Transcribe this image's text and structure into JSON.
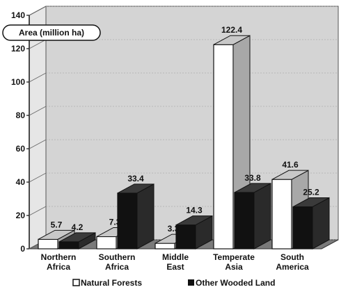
{
  "chart_data": {
    "type": "bar",
    "unit_label": "Area (million ha)",
    "categories": [
      [
        "Northern",
        "Africa"
      ],
      [
        "Southern",
        "Africa"
      ],
      [
        "Middle",
        "East"
      ],
      [
        "Temperate",
        "Asia"
      ],
      [
        "South",
        "America"
      ]
    ],
    "series": [
      {
        "name": "Natural Forests",
        "values": [
          5.7,
          7.3,
          3.3,
          122.4,
          41.6
        ],
        "color": "#ffffff"
      },
      {
        "name": "Other Wooded Land",
        "values": [
          4.2,
          33.4,
          14.3,
          33.8,
          25.2
        ],
        "color": "#111111"
      }
    ],
    "ylim": [
      0,
      140
    ],
    "yticks": [
      0,
      20,
      40,
      60,
      80,
      100,
      120,
      140
    ],
    "three_d": true,
    "legend_position": "bottom",
    "colors": {
      "wall": "#d4d4d4",
      "floor": "#7a7a7a",
      "front_white": "#ffffff",
      "side_white": "#a8a8a8",
      "top_white": "#c8c8c8",
      "front_black": "#111111",
      "side_black": "#2a2a2a",
      "top_black": "#3a3a3a"
    }
  }
}
